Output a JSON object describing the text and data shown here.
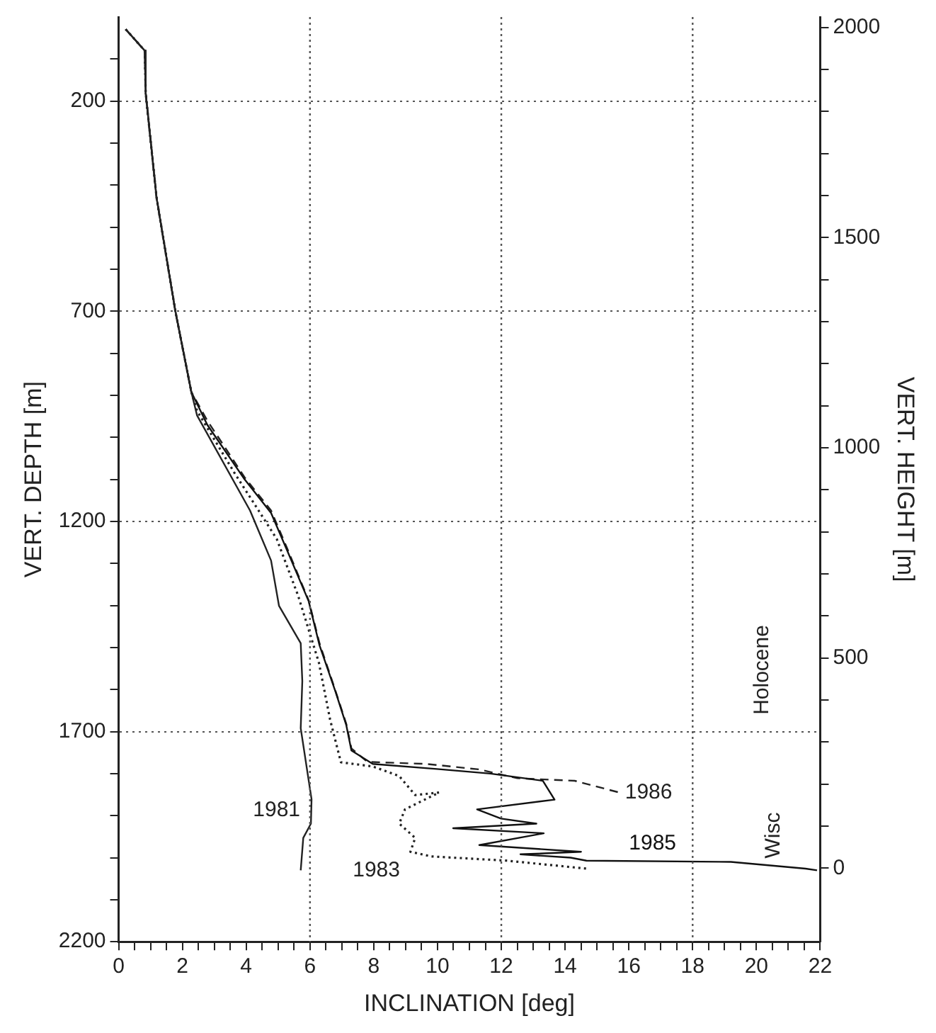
{
  "chart_data": {
    "type": "line",
    "xlabel": "INCLINATION [deg]",
    "ylabel": "VERT. DEPTH [m]",
    "y2label": "VERT. HEIGHT [m]",
    "xlim": [
      0,
      22
    ],
    "ylim": [
      2200,
      0
    ],
    "y2lim": [
      -175,
      2025
    ],
    "xticks": [
      0,
      {
        "value": 0.5,
        "label": null
      },
      {
        "value": 1,
        "label": null
      },
      {
        "value": 1.5,
        "label": null
      },
      2,
      {
        "value": 2.5,
        "label": null
      },
      {
        "value": 3,
        "label": null
      },
      {
        "value": 3.5,
        "label": null
      },
      4,
      {
        "value": 4.5,
        "label": null
      },
      {
        "value": 5,
        "label": null
      },
      {
        "value": 5.5,
        "label": null
      },
      6,
      {
        "value": 6.5,
        "label": null
      },
      {
        "value": 7,
        "label": null
      },
      {
        "value": 7.5,
        "label": null
      },
      8,
      {
        "value": 8.5,
        "label": null
      },
      {
        "value": 9,
        "label": null
      },
      {
        "value": 9.5,
        "label": null
      },
      10,
      {
        "value": 10.5,
        "label": null
      },
      {
        "value": 11,
        "label": null
      },
      {
        "value": 11.5,
        "label": null
      },
      12,
      {
        "value": 12.5,
        "label": null
      },
      {
        "value": 13,
        "label": null
      },
      {
        "value": 13.5,
        "label": null
      },
      14,
      {
        "value": 14.5,
        "label": null
      },
      {
        "value": 15,
        "label": null
      },
      {
        "value": 15.5,
        "label": null
      },
      16,
      {
        "value": 16.5,
        "label": null
      },
      {
        "value": 17,
        "label": null
      },
      {
        "value": 17.5,
        "label": null
      },
      18,
      {
        "value": 18.5,
        "label": null
      },
      {
        "value": 19,
        "label": null
      },
      {
        "value": 19.5,
        "label": null
      },
      20,
      {
        "value": 20.5,
        "label": null
      },
      {
        "value": 21,
        "label": null
      },
      {
        "value": 21.5,
        "label": null
      },
      22
    ],
    "yticks": [
      {
        "value": 100,
        "label": null
      },
      200,
      {
        "value": 300,
        "label": null
      },
      {
        "value": 400,
        "label": null
      },
      {
        "value": 500,
        "label": null
      },
      {
        "value": 600,
        "label": null
      },
      700,
      {
        "value": 800,
        "label": null
      },
      {
        "value": 900,
        "label": null
      },
      {
        "value": 1000,
        "label": null
      },
      {
        "value": 1100,
        "label": null
      },
      1200,
      {
        "value": 1300,
        "label": null
      },
      {
        "value": 1400,
        "label": null
      },
      {
        "value": 1500,
        "label": null
      },
      {
        "value": 1600,
        "label": null
      },
      1700,
      {
        "value": 1800,
        "label": null
      },
      {
        "value": 1900,
        "label": null
      },
      {
        "value": 2000,
        "label": null
      },
      {
        "value": 2100,
        "label": null
      },
      2200
    ],
    "y2ticks": [
      0,
      {
        "value": 100,
        "label": null
      },
      {
        "value": 200,
        "label": null
      },
      {
        "value": 300,
        "label": null
      },
      {
        "value": 400,
        "label": null
      },
      500,
      {
        "value": 600,
        "label": null
      },
      {
        "value": 700,
        "label": null
      },
      {
        "value": 800,
        "label": null
      },
      {
        "value": 900,
        "label": null
      },
      1000,
      {
        "value": 1100,
        "label": null
      },
      {
        "value": 1200,
        "label": null
      },
      {
        "value": 1300,
        "label": null
      },
      {
        "value": 1400,
        "label": null
      },
      1500,
      {
        "value": 1600,
        "label": null
      },
      {
        "value": 1700,
        "label": null
      },
      {
        "value": 1800,
        "label": null
      },
      {
        "value": 1900,
        "label": null
      },
      2000
    ],
    "grid": "y",
    "legend": false,
    "ref_lines": [
      {
        "axis": "x",
        "value": 6,
        "line_style": "dotted"
      },
      {
        "axis": "x",
        "value": 12,
        "line_style": "dotted"
      },
      {
        "axis": "x",
        "value": 18,
        "line_style": "dotted"
      }
    ],
    "annotations": [
      "Holocene",
      "Wisc"
    ],
    "series": [
      {
        "name": "1981",
        "color": "#222222",
        "line_style": "solid",
        "x": [
          0.22,
          0.69,
          0.82,
          0.85,
          1.19,
          1.78,
          2.28,
          2.46,
          4.12,
          4.78,
          5.03,
          5.71,
          5.76,
          5.71,
          6.05,
          6.03,
          5.79,
          5.71
        ],
        "values": [
          29,
          69,
          80,
          182,
          430,
          700,
          892,
          948,
          1174,
          1293,
          1401,
          1490,
          1580,
          1692,
          1861,
          1919,
          1953,
          2030
        ]
      },
      {
        "name": "1983",
        "color": "#222222",
        "line_style": "dotted",
        "x": [
          0.22,
          0.69,
          0.82,
          0.85,
          1.19,
          1.78,
          2.28,
          2.46,
          3.62,
          4.96,
          5.63,
          6.28,
          6.63,
          6.97,
          7.97,
          8.8,
          9.3,
          10.05,
          8.98,
          8.8,
          9.3,
          9.15,
          9.8,
          12.16,
          14.67
        ],
        "values": [
          29,
          69,
          80,
          182,
          430,
          700,
          892,
          937,
          1083,
          1242,
          1377,
          1536,
          1671,
          1773,
          1783,
          1806,
          1851,
          1845,
          1885,
          1919,
          1953,
          1986,
          1997,
          2007,
          2026
        ]
      },
      {
        "name": "1985",
        "color": "#111111",
        "line_style": "solid",
        "x": [
          0.22,
          0.69,
          0.82,
          0.85,
          1.19,
          1.78,
          2.28,
          2.78,
          3.95,
          4.78,
          5.29,
          5.96,
          6.3,
          6.8,
          7.14,
          7.3,
          7.97,
          9.98,
          11.66,
          13.3,
          13.67,
          11.24,
          11.99,
          13.1,
          10.49,
          13.33,
          11.31,
          14.5,
          12.6,
          14.17,
          14.67,
          19.2,
          21.54,
          21.9
        ],
        "values": [
          29,
          69,
          80,
          182,
          430,
          700,
          892,
          970,
          1100,
          1180,
          1270,
          1390,
          1495,
          1605,
          1685,
          1745,
          1777,
          1789,
          1800,
          1817,
          1862,
          1885,
          1907,
          1919,
          1930,
          1942,
          1970,
          1986,
          1992,
          2000,
          2007,
          2010,
          2026,
          2030
        ]
      },
      {
        "name": "1986",
        "color": "#222222",
        "line_style": "dashed",
        "x": [
          0.22,
          0.69,
          0.82,
          0.85,
          1.19,
          1.78,
          2.28,
          2.78,
          3.95,
          4.78,
          5.29,
          5.96,
          6.3,
          6.8,
          7.14,
          7.3,
          7.8,
          9.65,
          11.3,
          12.5,
          14.3,
          15.7
        ],
        "values": [
          29,
          69,
          80,
          182,
          430,
          700,
          892,
          960,
          1095,
          1174,
          1265,
          1388,
          1490,
          1603,
          1682,
          1740,
          1772,
          1777,
          1790,
          1811,
          1817,
          1845
        ]
      }
    ]
  }
}
